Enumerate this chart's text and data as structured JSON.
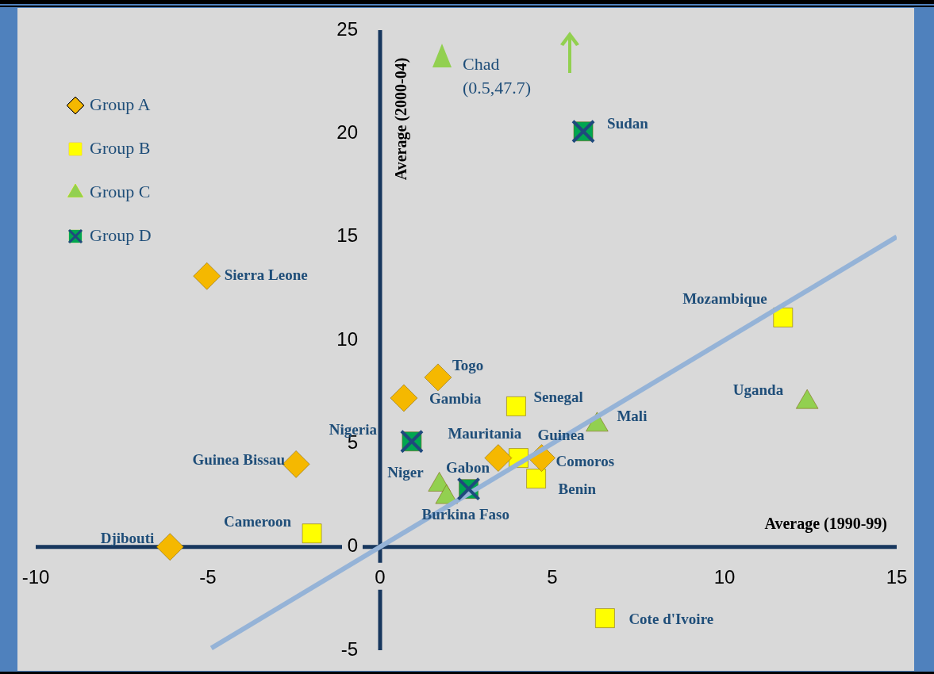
{
  "chart_data": {
    "type": "scatter",
    "xlabel": "Average (1990-99)",
    "ylabel": "Average (2000-04)",
    "xlim": [
      -10,
      15
    ],
    "xticks": [
      -10,
      -5,
      0,
      5,
      10,
      15
    ],
    "ylim": [
      -5,
      25
    ],
    "yticks": [
      -5,
      0,
      5,
      10,
      15,
      20,
      25
    ],
    "grid": false,
    "legend": "top left",
    "series": [
      {
        "name": "Group A",
        "color": "#f5b800",
        "marker": "diamond",
        "x": [
          -5.03,
          1.68,
          0.69,
          -2.44,
          -6.1,
          3.43,
          4.69
        ],
        "values": [
          13.1,
          8.2,
          7.2,
          4.0,
          0.0,
          4.3,
          4.3
        ]
      },
      {
        "name": "Group B",
        "color": "#ffff00",
        "marker": "square",
        "x": [
          4.02,
          11.7,
          3.95,
          -1.98,
          4.53,
          6.53
        ],
        "values": [
          4.3,
          11.1,
          6.8,
          0.65,
          3.3,
          -3.45
        ]
      },
      {
        "name": "Group C",
        "color": "#92d050",
        "marker": "triangle",
        "x": [
          12.4,
          6.3,
          1.72,
          1.93
        ],
        "values": [
          7.0,
          5.9,
          3.0,
          2.4
        ]
      },
      {
        "name": "Group D",
        "color": "#00a651",
        "marker": "square",
        "x": [
          5.9,
          0.92,
          2.57
        ],
        "values": [
          20.1,
          5.1,
          2.8
        ]
      },
      {
        "type": "line",
        "color": "#95b3d7",
        "marker": "none",
        "x": [
          -4.9,
          15
        ],
        "values": [
          -4.9,
          15
        ]
      }
    ],
    "annotations": [
      {
        "text": "Sierra Leone",
        "x": -5.03,
        "y": 13.1
      },
      {
        "text": "Togo",
        "x": 1.68,
        "y": 8.2
      },
      {
        "text": "Gambia",
        "x": 0.69,
        "y": 7.2
      },
      {
        "text": "Guinea Bissau",
        "x": -2.44,
        "y": 4.0
      },
      {
        "text": "Djibouti",
        "x": -6.1,
        "y": 0.0
      },
      {
        "text": "Mauritania",
        "x": 3.43,
        "y": 4.3
      },
      {
        "text": "Comoros",
        "x": 4.69,
        "y": 4.3
      },
      {
        "text": "Guinea",
        "x": 4.02,
        "y": 4.3
      },
      {
        "text": "Mozambique",
        "x": 11.7,
        "y": 11.1
      },
      {
        "text": "Senegal",
        "x": 3.95,
        "y": 6.8
      },
      {
        "text": "Cameroon",
        "x": -1.98,
        "y": 0.65
      },
      {
        "text": "Benin",
        "x": 4.53,
        "y": 3.3
      },
      {
        "text": "Cote d'Ivoire",
        "x": 6.53,
        "y": -3.45
      },
      {
        "text": "Uganda",
        "x": 12.4,
        "y": 7.0
      },
      {
        "text": "Mali",
        "x": 6.3,
        "y": 5.9
      },
      {
        "text": "Niger",
        "x": 1.72,
        "y": 3.0
      },
      {
        "text": "Burkina Faso",
        "x": 1.93,
        "y": 2.4
      },
      {
        "text": "Sudan",
        "x": 5.9,
        "y": 20.1
      },
      {
        "text": "Nigeria",
        "x": 0.92,
        "y": 5.1
      },
      {
        "text": "Gabon",
        "x": 2.57,
        "y": 2.8
      },
      "Chad (0.5,47.7)"
    ]
  }
}
